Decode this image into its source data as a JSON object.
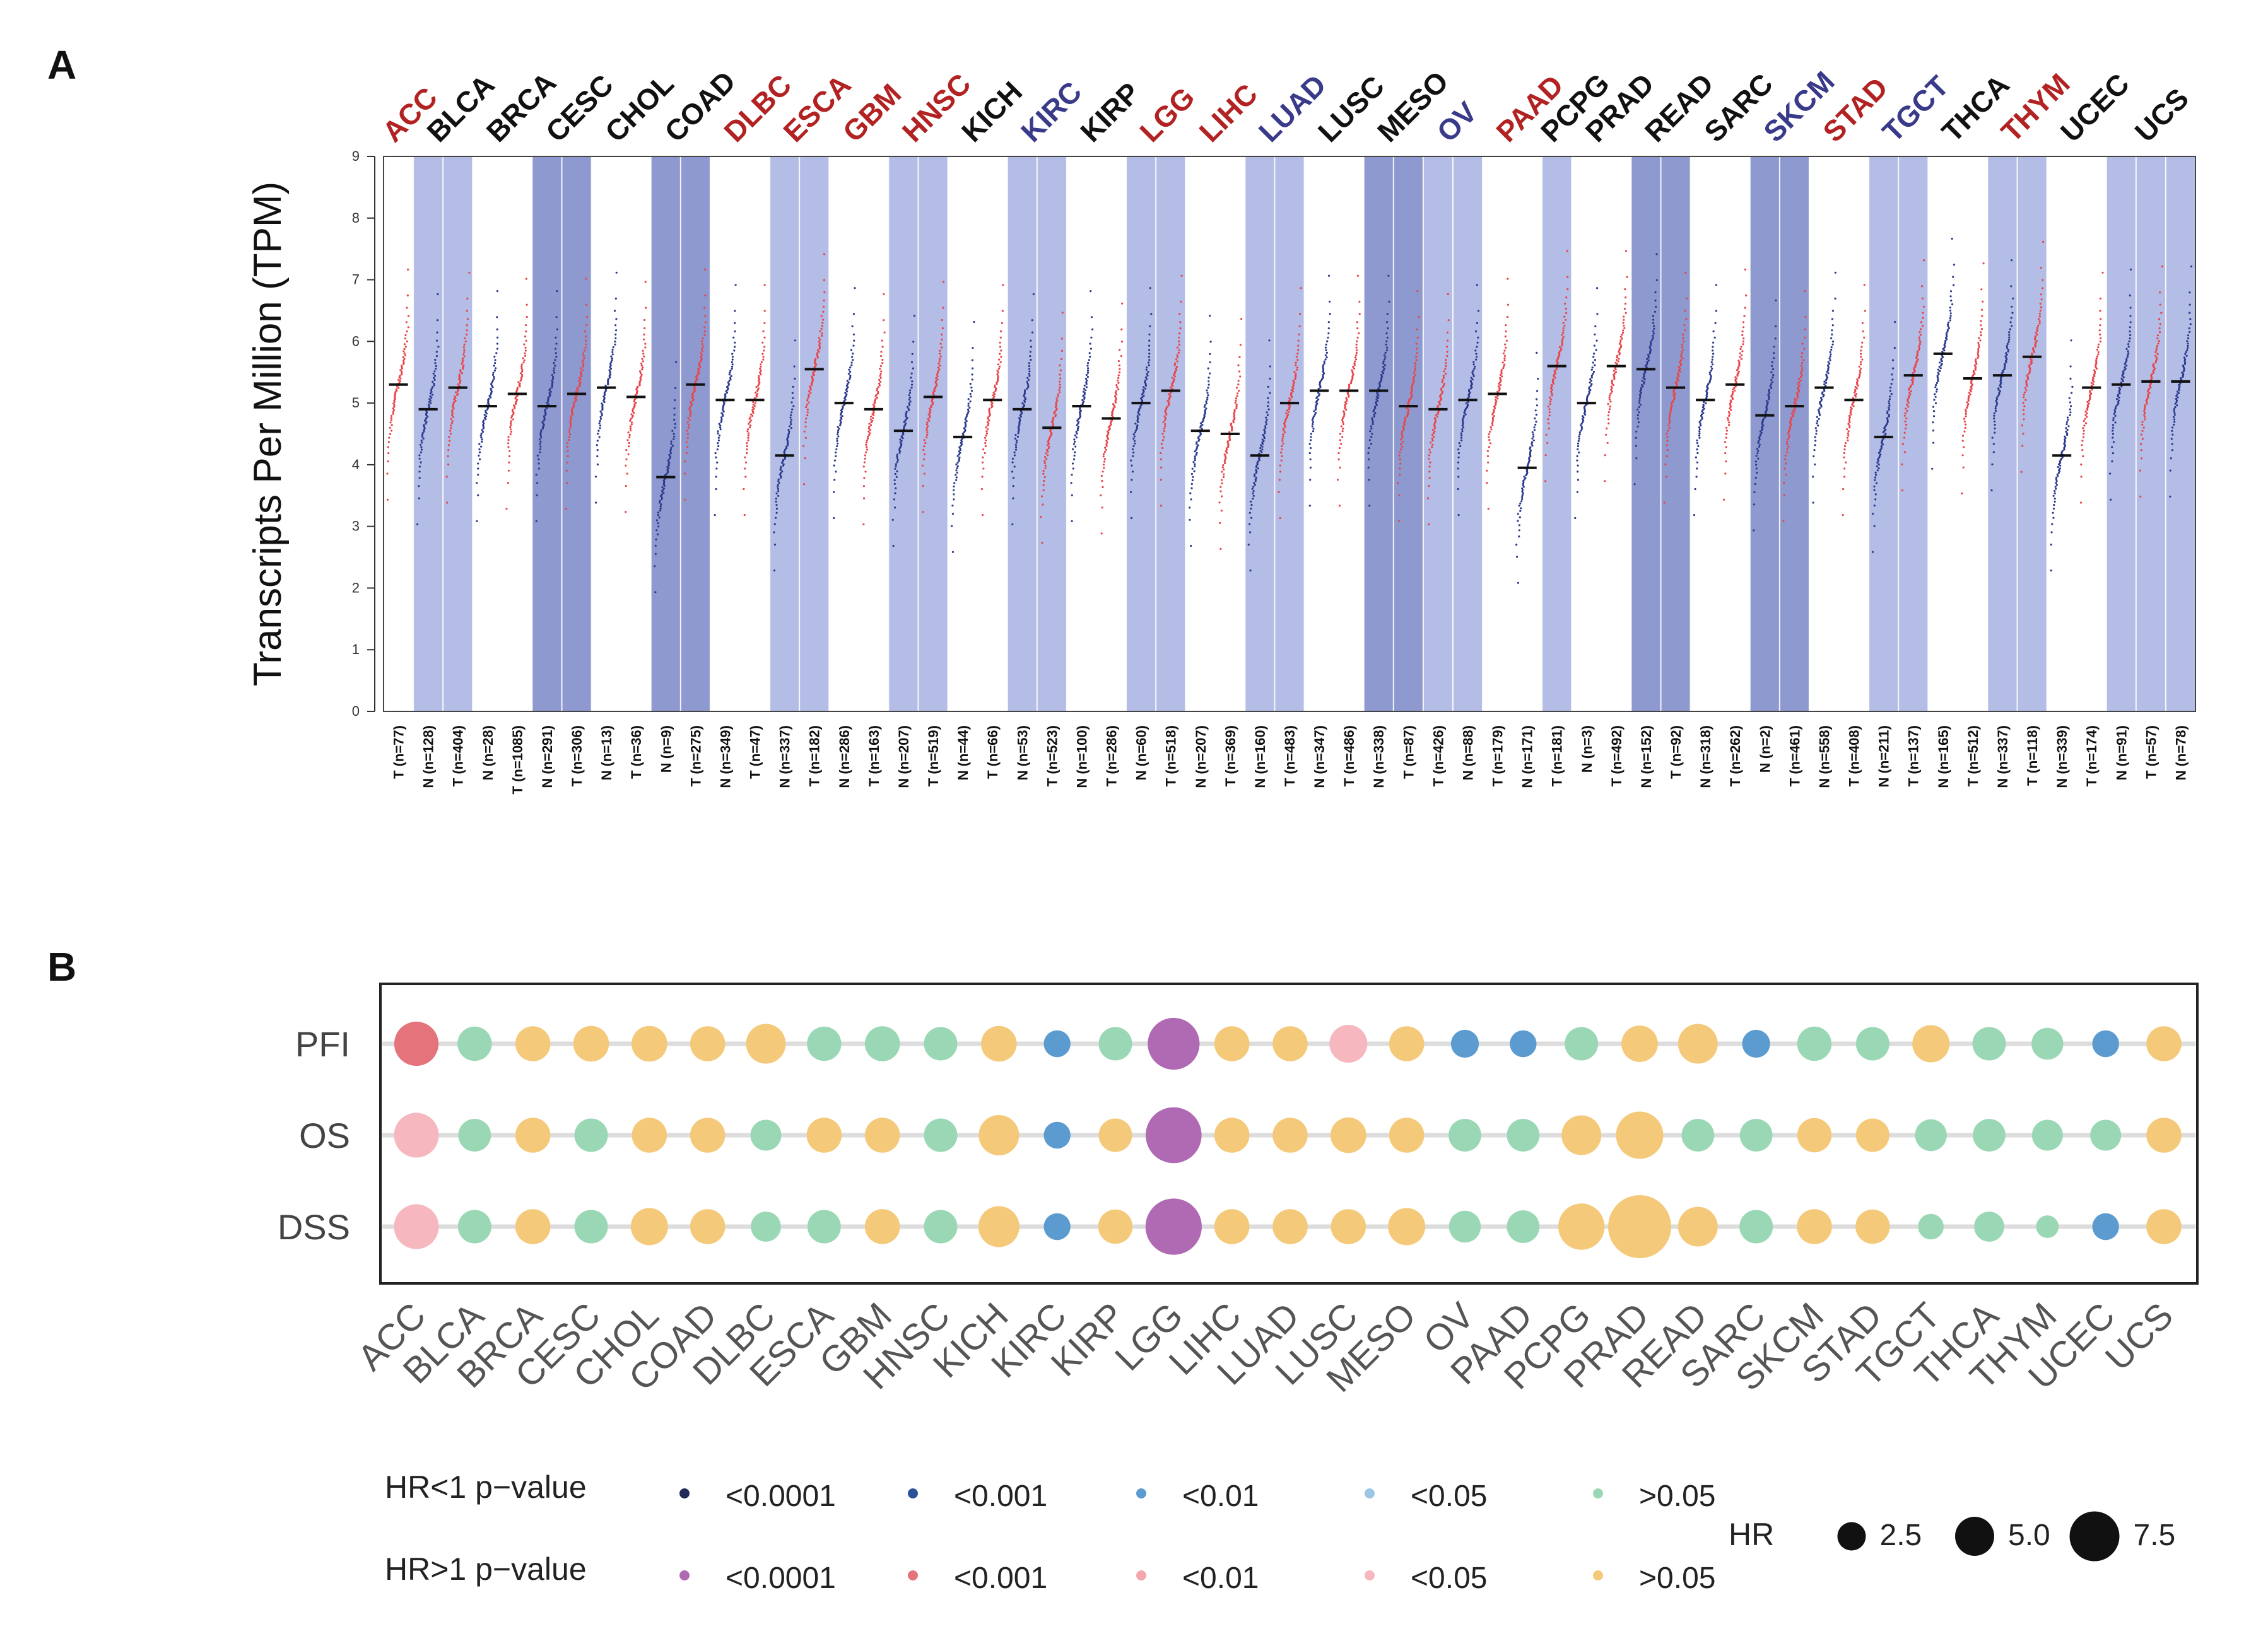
{
  "panels": {
    "a": "A",
    "b": "B"
  },
  "chart_data": [
    {
      "type": "scatter",
      "title": "",
      "ylabel": "Transcripts Per Million (TPM)",
      "ylim": [
        0,
        9
      ],
      "yticks": [
        0,
        1,
        2,
        3,
        4,
        5,
        6,
        7,
        8,
        9
      ],
      "cancers": [
        {
          "name": "ACC",
          "color": "#b22222",
          "shade": "none",
          "samples": [
            {
              "label": "T (n=77)",
              "group": "T",
              "median": 5.3
            }
          ]
        },
        {
          "name": "BLCA",
          "color": "#111111",
          "shade": "light",
          "samples": [
            {
              "label": "N (n=128)",
              "group": "N",
              "median": 4.9
            },
            {
              "label": "T (n=404)",
              "group": "T",
              "median": 5.25
            }
          ]
        },
        {
          "name": "BRCA",
          "color": "#111111",
          "shade": "none",
          "samples": [
            {
              "label": "N (n=28)",
              "group": "N",
              "median": 4.95
            },
            {
              "label": "T (n=1085)",
              "group": "T",
              "median": 5.15
            }
          ]
        },
        {
          "name": "CESC",
          "color": "#111111",
          "shade": "dark",
          "samples": [
            {
              "label": "N (n=291)",
              "group": "N",
              "median": 4.95
            },
            {
              "label": "T (n=306)",
              "group": "T",
              "median": 5.15
            }
          ]
        },
        {
          "name": "CHOL",
          "color": "#111111",
          "shade": "none",
          "samples": [
            {
              "label": "N (n=13)",
              "group": "N",
              "median": 5.25
            },
            {
              "label": "T (n=36)",
              "group": "T",
              "median": 5.1
            }
          ]
        },
        {
          "name": "COAD",
          "color": "#111111",
          "shade": "dark",
          "samples": [
            {
              "label": "N (n=9)",
              "group": "N",
              "median": 3.8
            },
            {
              "label": "T (n=275)",
              "group": "T",
              "median": 5.3
            }
          ]
        },
        {
          "name": "DLBC",
          "color": "#b22222",
          "shade": "none",
          "samples": [
            {
              "label": "N (n=349)",
              "group": "N",
              "median": 5.05
            },
            {
              "label": "T (n=47)",
              "group": "T",
              "median": 5.05
            }
          ]
        },
        {
          "name": "ESCA",
          "color": "#b22222",
          "shade": "light",
          "samples": [
            {
              "label": "N (n=337)",
              "group": "N",
              "median": 4.15
            },
            {
              "label": "T (n=182)",
              "group": "T",
              "median": 5.55
            }
          ]
        },
        {
          "name": "GBM",
          "color": "#b22222",
          "shade": "none",
          "samples": [
            {
              "label": "N (n=286)",
              "group": "N",
              "median": 5.0
            },
            {
              "label": "T (n=163)",
              "group": "T",
              "median": 4.9
            }
          ]
        },
        {
          "name": "HNSC",
          "color": "#b22222",
          "shade": "light",
          "samples": [
            {
              "label": "N (n=207)",
              "group": "N",
              "median": 4.55
            },
            {
              "label": "T (n=519)",
              "group": "T",
              "median": 5.1
            }
          ]
        },
        {
          "name": "KICH",
          "color": "#111111",
          "shade": "none",
          "samples": [
            {
              "label": "N (n=44)",
              "group": "N",
              "median": 4.45
            },
            {
              "label": "T (n=66)",
              "group": "T",
              "median": 5.05
            }
          ]
        },
        {
          "name": "KIRC",
          "color": "#3a3a8a",
          "shade": "light",
          "samples": [
            {
              "label": "N (n=53)",
              "group": "N",
              "median": 4.9
            },
            {
              "label": "T (n=523)",
              "group": "T",
              "median": 4.6
            }
          ]
        },
        {
          "name": "KIRP",
          "color": "#111111",
          "shade": "none",
          "samples": [
            {
              "label": "N (n=100)",
              "group": "N",
              "median": 4.95
            },
            {
              "label": "T (n=286)",
              "group": "T",
              "median": 4.75
            }
          ]
        },
        {
          "name": "LGG",
          "color": "#b22222",
          "shade": "light",
          "samples": [
            {
              "label": "N (n=60)",
              "group": "N",
              "median": 5.0
            },
            {
              "label": "T (n=518)",
              "group": "T",
              "median": 5.2
            }
          ]
        },
        {
          "name": "LIHC",
          "color": "#b22222",
          "shade": "none",
          "samples": [
            {
              "label": "N (n=207)",
              "group": "N",
              "median": 4.55
            },
            {
              "label": "T (n=369)",
              "group": "T",
              "median": 4.5
            }
          ]
        },
        {
          "name": "LUAD",
          "color": "#3a3a8a",
          "shade": "light",
          "samples": [
            {
              "label": "N (n=160)",
              "group": "N",
              "median": 4.15
            },
            {
              "label": "T (n=483)",
              "group": "T",
              "median": 5.0
            }
          ]
        },
        {
          "name": "LUSC",
          "color": "#111111",
          "shade": "none",
          "samples": [
            {
              "label": "N (n=347)",
              "group": "N",
              "median": 5.2
            },
            {
              "label": "T (n=486)",
              "group": "T",
              "median": 5.2
            }
          ]
        },
        {
          "name": "MESO",
          "color": "#111111",
          "shade": "dark",
          "samples": [
            {
              "label": "N (n=338)",
              "group": "N",
              "median": 5.2
            },
            {
              "label": "T (n=87)",
              "group": "T",
              "median": 4.95
            }
          ]
        },
        {
          "name": "OV",
          "color": "#3a3a8a",
          "shade": "light",
          "samples": [
            {
              "label": "T (n=426)",
              "group": "T",
              "median": 4.9
            },
            {
              "label": "N (n=88)",
              "group": "N",
              "median": 5.05
            }
          ]
        },
        {
          "name": "PAAD",
          "color": "#b22222",
          "shade": "none",
          "samples": [
            {
              "label": "T (n=179)",
              "group": "T",
              "median": 5.15
            },
            {
              "label": "N (n=171)",
              "group": "N",
              "median": 3.95
            }
          ]
        },
        {
          "name": "PCPG",
          "color": "#111111",
          "shade": "light",
          "samples": [
            {
              "label": "T (n=181)",
              "group": "T",
              "median": 5.6
            }
          ]
        },
        {
          "name": "PRAD",
          "color": "#111111",
          "shade": "none",
          "samples": [
            {
              "label": "N (n=3)",
              "group": "N",
              "median": 5.0
            },
            {
              "label": "T (n=492)",
              "group": "T",
              "median": 5.6
            }
          ]
        },
        {
          "name": "READ",
          "color": "#111111",
          "shade": "dark",
          "samples": [
            {
              "label": "N (n=152)",
              "group": "N",
              "median": 5.55
            },
            {
              "label": "T (n=92)",
              "group": "T",
              "median": 5.25
            }
          ]
        },
        {
          "name": "SARC",
          "color": "#111111",
          "shade": "none",
          "samples": [
            {
              "label": "N (n=318)",
              "group": "N",
              "median": 5.05
            },
            {
              "label": "T (n=262)",
              "group": "T",
              "median": 5.3
            }
          ]
        },
        {
          "name": "SKCM",
          "color": "#3a3a8a",
          "shade": "dark",
          "samples": [
            {
              "label": "N (n=2)",
              "group": "N",
              "median": 4.8
            },
            {
              "label": "T (n=461)",
              "group": "T",
              "median": 4.95
            }
          ]
        },
        {
          "name": "STAD",
          "color": "#b22222",
          "shade": "none",
          "samples": [
            {
              "label": "N (n=558)",
              "group": "N",
              "median": 5.25
            },
            {
              "label": "T (n=408)",
              "group": "T",
              "median": 5.05
            }
          ]
        },
        {
          "name": "TGCT",
          "color": "#3a3a8a",
          "shade": "light",
          "samples": [
            {
              "label": "N (n=211)",
              "group": "N",
              "median": 4.45
            },
            {
              "label": "T (n=137)",
              "group": "T",
              "median": 5.45
            }
          ]
        },
        {
          "name": "THCA",
          "color": "#111111",
          "shade": "none",
          "samples": [
            {
              "label": "N (n=165)",
              "group": "N",
              "median": 5.8
            },
            {
              "label": "T (n=512)",
              "group": "T",
              "median": 5.4
            }
          ]
        },
        {
          "name": "THYM",
          "color": "#b22222",
          "shade": "light",
          "samples": [
            {
              "label": "N (n=337)",
              "group": "N",
              "median": 5.45
            },
            {
              "label": "T (n=118)",
              "group": "T",
              "median": 5.75
            }
          ]
        },
        {
          "name": "UCEC",
          "color": "#111111",
          "shade": "none",
          "samples": [
            {
              "label": "N (n=339)",
              "group": "N",
              "median": 4.15
            },
            {
              "label": "T (n=174)",
              "group": "T",
              "median": 5.25
            }
          ]
        },
        {
          "name": "UCS",
          "color": "#111111",
          "shade": "light",
          "samples": [
            {
              "label": "N (n=91)",
              "group": "N",
              "median": 5.3
            },
            {
              "label": "T (n=57)",
              "group": "T",
              "median": 5.35
            },
            {
              "label": "N (n=78)",
              "group": "N",
              "median": 5.35
            }
          ]
        }
      ],
      "colors": {
        "tumor": "#e8454a",
        "normal": "#2c3a8c",
        "shade_light": "#b4bde6",
        "shade_dark": "#8e9acf",
        "median": "#111111"
      }
    },
    {
      "type": "bubble",
      "rows": [
        "PFI",
        "OS",
        "DSS"
      ],
      "categories": [
        "ACC",
        "BLCA",
        "BRCA",
        "CESC",
        "CHOL",
        "COAD",
        "DLBC",
        "ESCA",
        "GBM",
        "HNSC",
        "KICH",
        "KIRC",
        "KIRP",
        "LGG",
        "LIHC",
        "LUAD",
        "LUSC",
        "MESO",
        "OV",
        "PAAD",
        "PCPG",
        "PRAD",
        "READ",
        "SARC",
        "SKCM",
        "STAD",
        "TGCT",
        "THCA",
        "THYM",
        "UCEC",
        "UCS"
      ],
      "hr": {
        "PFI": [
          3.0,
          1.4,
          1.5,
          1.6,
          1.6,
          1.5,
          2.2,
          1.4,
          1.5,
          1.3,
          1.6,
          0.6,
          1.3,
          4.6,
          1.5,
          1.5,
          1.9,
          1.5,
          0.7,
          0.6,
          1.3,
          1.7,
          2.2,
          0.7,
          1.4,
          1.3,
          1.8,
          1.3,
          1.1,
          0.6,
          1.5
        ],
        "OS": [
          3.1,
          1.2,
          1.5,
          1.3,
          1.5,
          1.5,
          1.0,
          1.5,
          1.5,
          1.3,
          2.3,
          0.6,
          1.3,
          5.6,
          1.5,
          1.5,
          1.6,
          1.5,
          1.2,
          1.2,
          2.2,
          3.6,
          1.2,
          1.2,
          1.4,
          1.3,
          1.1,
          1.2,
          1.0,
          1.0,
          1.5
        ],
        "DSS": [
          3.1,
          1.3,
          1.5,
          1.3,
          1.8,
          1.5,
          0.9,
          1.3,
          1.5,
          1.3,
          2.4,
          0.6,
          1.4,
          5.7,
          1.5,
          1.5,
          1.5,
          1.8,
          1.1,
          1.2,
          3.4,
          7.6,
          2.2,
          1.3,
          1.5,
          1.4,
          0.5,
          0.9,
          0.3,
          0.6,
          1.5
        ]
      },
      "sig": {
        "PFI": [
          "up_0.001",
          "ns",
          "hr_ns",
          "hr_ns",
          "hr_ns",
          "hr_ns",
          "hr_ns",
          "ns",
          "ns",
          "ns",
          "hr_ns",
          "down_0.01",
          "ns",
          "up_0.0001",
          "hr_ns",
          "hr_ns",
          "up_0.05",
          "hr_ns",
          "down_0.01",
          "down_0.01",
          "ns",
          "hr_ns",
          "hr_ns",
          "down_0.01",
          "ns",
          "ns",
          "hr_ns",
          "ns",
          "ns",
          "down_0.01",
          "hr_ns"
        ],
        "OS": [
          "up_0.05",
          "ns",
          "hr_ns",
          "ns",
          "hr_ns",
          "hr_ns",
          "ns",
          "hr_ns",
          "hr_ns",
          "ns",
          "hr_ns",
          "down_0.01",
          "hr_ns",
          "up_0.0001",
          "hr_ns",
          "hr_ns",
          "hr_ns",
          "hr_ns",
          "ns",
          "ns",
          "hr_ns",
          "hr_ns",
          "ns",
          "ns",
          "hr_ns",
          "hr_ns",
          "ns",
          "ns",
          "ns",
          "ns",
          "hr_ns"
        ],
        "DSS": [
          "up_0.05",
          "ns",
          "hr_ns",
          "ns",
          "hr_ns",
          "hr_ns",
          "ns",
          "ns",
          "hr_ns",
          "ns",
          "hr_ns",
          "down_0.01",
          "hr_ns",
          "up_0.0001",
          "hr_ns",
          "hr_ns",
          "hr_ns",
          "hr_ns",
          "ns",
          "ns",
          "hr_ns",
          "hr_ns",
          "hr_ns",
          "ns",
          "hr_ns",
          "hr_ns",
          "ns",
          "ns",
          "ns",
          "down_0.01",
          "hr_ns"
        ]
      },
      "sig_colors": {
        "down_0.0001": "#1f2a5a",
        "down_0.001": "#2e4f9a",
        "down_0.01": "#5b9bd0",
        "down_0.05": "#9cc6e6",
        "ns": "#9ad7b4",
        "up_0.0001": "#b06ab3",
        "up_0.001": "#e4737c",
        "up_0.01": "#f3a6ad",
        "up_0.05": "#f6b8be",
        "hr_ns": "#f5c97a"
      },
      "legend": {
        "hr_lt_title": "HR<1 p−value",
        "hr_gt_title": "HR>1 p−value",
        "hr_lt_items": [
          {
            "label": "<0.0001",
            "key": "down_0.0001"
          },
          {
            "label": "<0.001",
            "key": "down_0.001"
          },
          {
            "label": "<0.01",
            "key": "down_0.01"
          },
          {
            "label": "<0.05",
            "key": "down_0.05"
          },
          {
            "label": ">0.05",
            "key": "ns"
          }
        ],
        "hr_gt_items": [
          {
            "label": "<0.0001",
            "key": "up_0.0001"
          },
          {
            "label": "<0.001",
            "key": "up_0.001"
          },
          {
            "label": "<0.01",
            "key": "up_0.01"
          },
          {
            "label": "<0.05",
            "key": "up_0.05"
          },
          {
            "label": ">0.05",
            "key": "hr_ns"
          }
        ],
        "hr_title": "HR",
        "hr_sizes": [
          {
            "label": "2.5",
            "value": 2.5
          },
          {
            "label": "5.0",
            "value": 5.0
          },
          {
            "label": "7.5",
            "value": 7.5
          }
        ]
      }
    }
  ]
}
